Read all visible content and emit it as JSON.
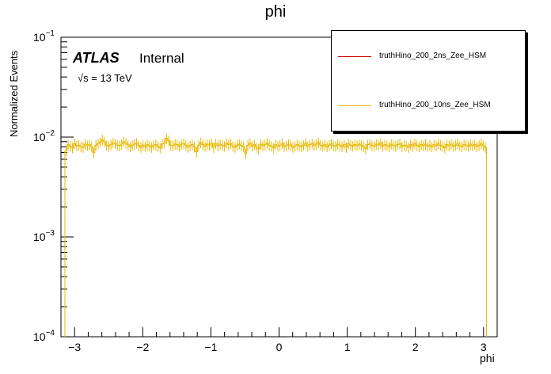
{
  "header": {
    "title": "phi"
  },
  "labels": {
    "atlas": "ATLAS",
    "internal": "Internal",
    "energy": "√s = 13 TeV"
  },
  "legend": [
    {
      "name": "truthHino_200_2ns_Zee_HSM",
      "color": "#cc0000"
    },
    {
      "name": "truthHino_200_10ns_Zee_HSM",
      "color": "#e8b800"
    }
  ],
  "chart_data": {
    "type": "line",
    "title": "phi",
    "xlabel": "phi",
    "ylabel": "Normalized Events",
    "xlim": [
      -3.2,
      3.2
    ],
    "ylim": [
      0.0001,
      0.1
    ],
    "yscale": "log",
    "x_ticks": [
      "−3",
      "−2",
      "−1",
      "0",
      "1",
      "2",
      "3"
    ],
    "y_ticks": [
      "10^-4",
      "10^-3",
      "10^-2",
      "10^-1"
    ],
    "series": [
      {
        "name": "truthHino_200_10ns_Zee_HSM",
        "color": "#e8b800",
        "bin_width": 0.0314,
        "x_start": -3.142,
        "values": [
          0.0073,
          0.0084,
          0.0081,
          0.0078,
          0.0086,
          0.0082,
          0.0083,
          0.008,
          0.0079,
          0.0085,
          0.0082,
          0.0084,
          0.008,
          0.007,
          0.0083,
          0.0086,
          0.0089,
          0.0094,
          0.009,
          0.0083,
          0.0081,
          0.0084,
          0.0088,
          0.0086,
          0.0083,
          0.0082,
          0.0085,
          0.009,
          0.0087,
          0.0084,
          0.008,
          0.0083,
          0.0085,
          0.0087,
          0.0082,
          0.0079,
          0.0083,
          0.008,
          0.0084,
          0.0082,
          0.0079,
          0.0083,
          0.0084,
          0.0081,
          0.0078,
          0.0085,
          0.0087,
          0.0097,
          0.0092,
          0.0083,
          0.0082,
          0.0085,
          0.0084,
          0.0081,
          0.0085,
          0.0086,
          0.0083,
          0.0079,
          0.0082,
          0.0084,
          0.008,
          0.0071,
          0.0083,
          0.0088,
          0.0084,
          0.0081,
          0.0085,
          0.0083,
          0.0087,
          0.0079,
          0.0086,
          0.0082,
          0.0085,
          0.0083,
          0.0081,
          0.0087,
          0.0084,
          0.0086,
          0.0081,
          0.0079,
          0.0083,
          0.0085,
          0.0082,
          0.008,
          0.0068,
          0.0083,
          0.0087,
          0.0081,
          0.0084,
          0.0079,
          0.0076,
          0.0085,
          0.0082,
          0.0084,
          0.0087,
          0.0083,
          0.0081,
          0.0078,
          0.0084,
          0.0081,
          0.0083,
          0.0086,
          0.008,
          0.0082,
          0.0085,
          0.0083,
          0.0079,
          0.0081,
          0.0084,
          0.0082,
          0.008,
          0.0083,
          0.0087,
          0.0081,
          0.0084,
          0.0086,
          0.0082,
          0.0085,
          0.0088,
          0.0083,
          0.0081,
          0.0084,
          0.008,
          0.0083,
          0.0086,
          0.0082,
          0.0081,
          0.0085,
          0.0083,
          0.008,
          0.0084,
          0.0079,
          0.0086,
          0.0083,
          0.0081,
          0.0084,
          0.0082,
          0.0085,
          0.0083,
          0.008,
          0.0077,
          0.0084,
          0.0086,
          0.0082,
          0.0081,
          0.0085,
          0.0083,
          0.0087,
          0.0081,
          0.0084,
          0.0082,
          0.008,
          0.0085,
          0.0083,
          0.0081,
          0.0084,
          0.0086,
          0.008,
          0.0083,
          0.0082,
          0.0079,
          0.0084,
          0.0081,
          0.0086,
          0.0083,
          0.008,
          0.0084,
          0.0082,
          0.0085,
          0.0081,
          0.0083,
          0.008,
          0.0084,
          0.0082,
          0.0086,
          0.0083,
          0.0081,
          0.0078,
          0.0084,
          0.0082,
          0.0085,
          0.0081,
          0.0083,
          0.0086,
          0.0082,
          0.008,
          0.0084,
          0.0083,
          0.0081,
          0.0085,
          0.0082,
          0.0084,
          0.008,
          0.0083,
          0.0086,
          0.0082,
          0.0079
        ]
      },
      {
        "name": "truthHino_200_2ns_Zee_HSM",
        "color": "#cc0000",
        "values": []
      }
    ],
    "legend_position": "top-right",
    "grid": false
  }
}
